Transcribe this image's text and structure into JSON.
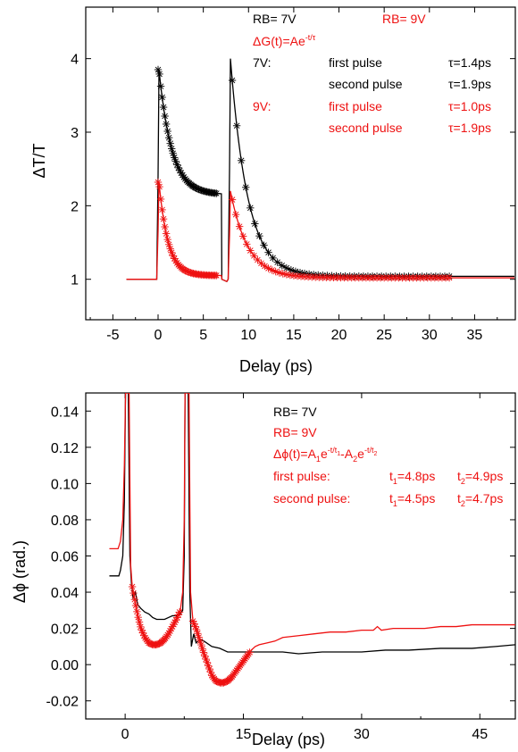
{
  "chart_data": [
    {
      "type": "line",
      "xlabel": "Delay (ps)",
      "ylabel": "ΔT/T",
      "xlim": [
        -8,
        39.5
      ],
      "ylim": [
        0.45,
        4.7
      ],
      "x_ticks": [
        -5,
        0,
        5,
        10,
        15,
        20,
        25,
        30,
        35
      ],
      "y_ticks": [
        1,
        2,
        3,
        4
      ],
      "grid": false,
      "legend": "top-right",
      "colors": {
        "v7": "#000000",
        "v9": "#ee1111"
      },
      "annotations": {
        "rb7": "RB= 7V",
        "rb9": "RB= 9V",
        "formula_base": "ΔG(t)=Ae",
        "formula_exp": "-t/τ",
        "v7_label": "7V:",
        "v9_label": "9V:",
        "first_pulse": "first pulse",
        "second_pulse": "second pulse",
        "v7_first_tau": "τ=1.4ps",
        "v7_second_tau": "τ=1.9ps",
        "v9_first_tau": "τ=1.0ps",
        "v9_second_tau": "τ=1.9ps"
      },
      "series": [
        {
          "key": "v7",
          "color": "#000000",
          "pulses": [
            {
              "start": 0.0,
              "peak": 3.85,
              "tau": 1.4,
              "baseline": 1.0,
              "plateau": 1.15,
              "t_end": 7.0
            },
            {
              "start": 7.9,
              "peak": 4.0,
              "tau": 1.9,
              "baseline": 1.0,
              "plateau": 0.04,
              "t_end": 39.5
            }
          ],
          "pre_level": 1.0,
          "fit_markers": [
            {
              "t_start": 0.0,
              "t_end": 6.5,
              "step": 0.15
            },
            {
              "t_start": 8.2,
              "t_end": 32.2,
              "step": 0.5
            }
          ]
        },
        {
          "key": "v9",
          "color": "#ee1111",
          "pulses": [
            {
              "start": 0.0,
              "peak": 2.32,
              "tau": 1.0,
              "baseline": 1.0,
              "plateau": 0.05,
              "t_end": 7.0
            },
            {
              "start": 7.9,
              "peak": 2.2,
              "tau": 1.9,
              "baseline": 1.0,
              "plateau": 0.02,
              "t_end": 39.5
            }
          ],
          "pre_level": 1.0,
          "fit_markers": [
            {
              "t_start": 0.0,
              "t_end": 6.6,
              "step": 0.15
            },
            {
              "t_start": 8.2,
              "t_end": 32.2,
              "step": 0.4
            }
          ]
        }
      ]
    },
    {
      "type": "line",
      "xlabel": "Delay (ps)",
      "ylabel": "Δϕ (rad.)",
      "xlim": [
        -5,
        49.5
      ],
      "ylim": [
        -0.03,
        0.15
      ],
      "x_ticks": [
        0,
        15,
        30,
        45
      ],
      "y_ticks": [
        -0.02,
        0.0,
        0.02,
        0.04,
        0.06,
        0.08,
        0.1,
        0.12,
        0.14
      ],
      "y_tick_labels": [
        "-0.02",
        "0.00",
        "0.02",
        "0.04",
        "0.06",
        "0.08",
        "0.10",
        "0.12",
        "0.14"
      ],
      "grid": false,
      "legend": "top-right",
      "colors": {
        "v7": "#000000",
        "v9": "#ee1111"
      },
      "annotations": {
        "rb7": "RB= 7V",
        "rb9": "RB= 9V",
        "formula": {
          "lhs": "Δϕ(t)=A",
          "s1": "1",
          "e1": "e",
          "x1": "-t/t",
          "x1s": "1",
          "mid": "-A",
          "s2": "2",
          "e2": "e",
          "x2": "-t/t",
          "x2s": "2"
        },
        "first_pulse_label": "first pulse:",
        "second_pulse_label": "second pulse:",
        "t1": "t",
        "t1_sub": "1",
        "t2": "t",
        "t2_sub": "2",
        "first_t1_val": "=4.8ps",
        "first_t2_val": "=4.9ps",
        "second_t1_val": "=4.5ps",
        "second_t2_val": "=4.7ps"
      },
      "series": [
        {
          "key": "v7",
          "color": "#000000",
          "points": [
            [
              -2.0,
              0.049
            ],
            [
              -0.8,
              0.049
            ],
            [
              -0.6,
              0.052
            ],
            [
              -0.3,
              0.06
            ],
            [
              -0.1,
              0.09
            ],
            [
              0.05,
              0.15
            ],
            [
              0.4,
              0.15
            ],
            [
              0.6,
              0.06
            ],
            [
              0.8,
              0.045
            ],
            [
              1.0,
              0.037
            ],
            [
              1.3,
              0.04
            ],
            [
              1.6,
              0.033
            ],
            [
              2.0,
              0.031
            ],
            [
              2.5,
              0.029
            ],
            [
              3.0,
              0.028
            ],
            [
              3.5,
              0.026
            ],
            [
              4.0,
              0.025
            ],
            [
              4.5,
              0.025
            ],
            [
              5.0,
              0.025
            ],
            [
              5.5,
              0.026
            ],
            [
              6.0,
              0.027
            ],
            [
              6.5,
              0.027
            ],
            [
              7.0,
              0.028
            ],
            [
              7.3,
              0.03
            ],
            [
              7.5,
              0.06
            ],
            [
              7.6,
              0.15
            ],
            [
              8.0,
              0.15
            ],
            [
              8.2,
              0.04
            ],
            [
              8.4,
              0.01
            ],
            [
              8.7,
              0.017
            ],
            [
              9.0,
              0.012
            ],
            [
              9.5,
              0.014
            ],
            [
              10.0,
              0.013
            ],
            [
              11.0,
              0.01
            ],
            [
              12.0,
              0.009
            ],
            [
              13.0,
              0.007
            ],
            [
              14.0,
              0.007
            ],
            [
              16.0,
              0.007
            ],
            [
              18.0,
              0.007
            ],
            [
              20.0,
              0.007
            ],
            [
              22.0,
              0.006
            ],
            [
              25.0,
              0.007
            ],
            [
              28.0,
              0.007
            ],
            [
              30.0,
              0.007
            ],
            [
              33.0,
              0.008
            ],
            [
              36.0,
              0.008
            ],
            [
              40.0,
              0.009
            ],
            [
              44.0,
              0.009
            ],
            [
              47.0,
              0.01
            ],
            [
              49.5,
              0.011
            ]
          ]
        },
        {
          "key": "v9",
          "color": "#ee1111",
          "points": [
            [
              -2.0,
              0.064
            ],
            [
              -0.9,
              0.064
            ],
            [
              -0.6,
              0.068
            ],
            [
              -0.3,
              0.08
            ],
            [
              -0.1,
              0.11
            ],
            [
              0.05,
              0.15
            ],
            [
              0.5,
              0.15
            ],
            [
              0.7,
              0.055
            ],
            [
              0.9,
              0.043
            ],
            [
              1.2,
              0.036
            ],
            [
              1.6,
              0.027
            ],
            [
              2.0,
              0.02
            ],
            [
              2.5,
              0.015
            ],
            [
              3.0,
              0.012
            ],
            [
              3.5,
              0.011
            ],
            [
              4.0,
              0.011
            ],
            [
              4.5,
              0.012
            ],
            [
              5.0,
              0.014
            ],
            [
              5.5,
              0.017
            ],
            [
              6.0,
              0.021
            ],
            [
              6.5,
              0.025
            ],
            [
              7.0,
              0.03
            ],
            [
              7.3,
              0.04
            ],
            [
              7.5,
              0.08
            ],
            [
              7.6,
              0.15
            ],
            [
              8.1,
              0.15
            ],
            [
              8.3,
              0.04
            ],
            [
              8.6,
              0.024
            ],
            [
              9.0,
              0.02
            ],
            [
              9.5,
              0.013
            ],
            [
              10.0,
              0.006
            ],
            [
              10.5,
              0.0
            ],
            [
              11.0,
              -0.006
            ],
            [
              11.5,
              -0.009
            ],
            [
              12.0,
              -0.01
            ],
            [
              12.5,
              -0.01
            ],
            [
              13.0,
              -0.009
            ],
            [
              13.5,
              -0.007
            ],
            [
              14.0,
              -0.004
            ],
            [
              14.5,
              -0.001
            ],
            [
              15.0,
              0.002
            ],
            [
              15.5,
              0.005
            ],
            [
              16.0,
              0.008
            ],
            [
              16.5,
              0.01
            ],
            [
              17.0,
              0.011
            ],
            [
              18.0,
              0.012
            ],
            [
              19.0,
              0.013
            ],
            [
              20.0,
              0.015
            ],
            [
              22.0,
              0.016
            ],
            [
              24.0,
              0.017
            ],
            [
              26.0,
              0.018
            ],
            [
              28.0,
              0.018
            ],
            [
              30.0,
              0.019
            ],
            [
              31.5,
              0.019
            ],
            [
              32.0,
              0.021
            ],
            [
              32.5,
              0.019
            ],
            [
              34.0,
              0.02
            ],
            [
              36.0,
              0.02
            ],
            [
              38.0,
              0.02
            ],
            [
              40.0,
              0.021
            ],
            [
              42.0,
              0.021
            ],
            [
              44.0,
              0.022
            ],
            [
              46.0,
              0.022
            ],
            [
              48.0,
              0.022
            ],
            [
              49.5,
              0.022
            ]
          ],
          "fit_markers": [
            {
              "t_start": 0.9,
              "t_end": 7.0,
              "step": 0.15
            },
            {
              "t_start": 8.6,
              "t_end": 15.9,
              "step": 0.15
            }
          ]
        }
      ]
    }
  ]
}
